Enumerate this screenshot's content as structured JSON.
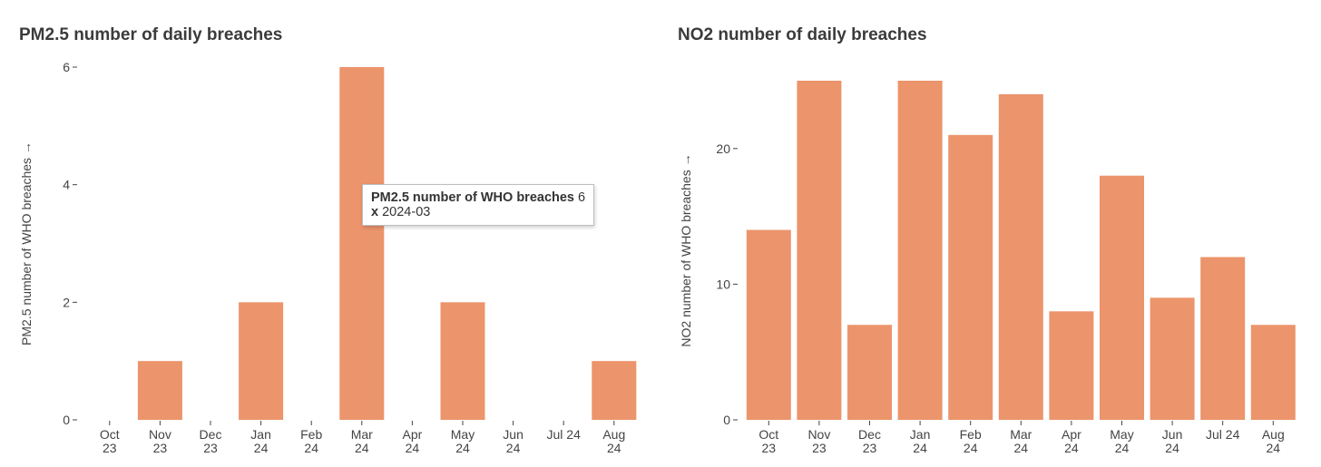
{
  "charts": [
    {
      "id": "pm25",
      "title": "PM2.5 number of daily breaches",
      "chart_data": {
        "type": "bar",
        "title": "PM2.5 number of daily breaches",
        "ylabel": "PM2.5 number of WHO breaches →",
        "xlabel": "",
        "categories": [
          "Oct 23",
          "Nov 23",
          "Dec 23",
          "Jan 24",
          "Feb 24",
          "Mar 24",
          "Apr 24",
          "May 24",
          "Jun 24",
          "Jul 24",
          "Aug 24"
        ],
        "values": [
          0,
          1,
          0,
          2,
          0,
          6,
          0,
          2,
          0,
          0,
          1
        ],
        "ylim": [
          0,
          6
        ],
        "yticks": [
          0,
          2,
          4,
          6
        ],
        "color": "#ec946b"
      },
      "tooltip": {
        "series_label": "PM2.5 number of WHO breaches",
        "value": "6",
        "x_key": "x",
        "x_value": "2024-03"
      }
    },
    {
      "id": "no2",
      "title": "NO2 number of daily breaches",
      "chart_data": {
        "type": "bar",
        "title": "NO2 number of daily breaches",
        "ylabel": "NO2 number of WHO breaches →",
        "xlabel": "",
        "categories": [
          "Oct 23",
          "Nov 23",
          "Dec 23",
          "Jan 24",
          "Feb 24",
          "Mar 24",
          "Apr 24",
          "May 24",
          "Jun 24",
          "Jul 24",
          "Aug 24"
        ],
        "values": [
          14,
          25,
          7,
          25,
          21,
          24,
          8,
          18,
          9,
          12,
          7
        ],
        "ylim": [
          0,
          25
        ],
        "yticks": [
          0,
          10,
          20
        ],
        "color": "#ec946b"
      }
    }
  ]
}
